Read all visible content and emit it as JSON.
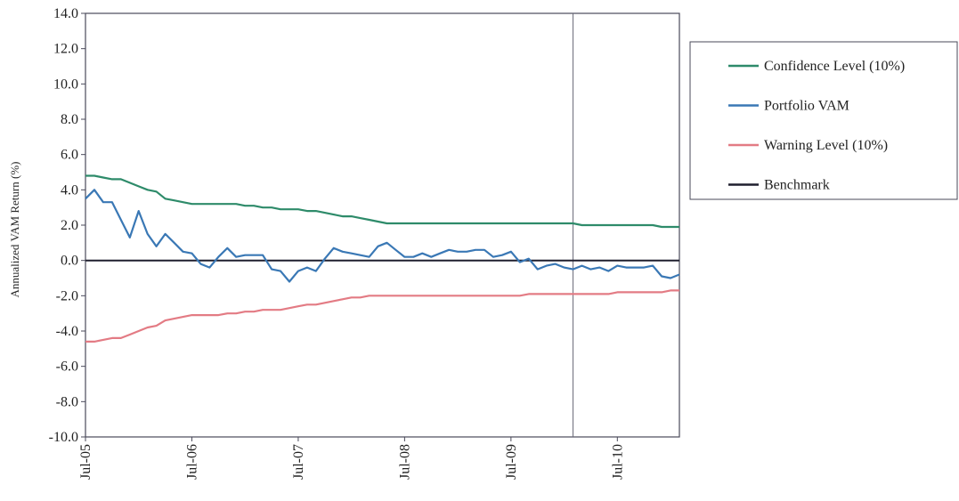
{
  "chart_data": {
    "type": "line",
    "title": "",
    "xlabel": "",
    "ylabel": "Annualized VAM Return (%)",
    "ylim": [
      -10,
      14
    ],
    "y_ticks": [
      "14.0",
      "12.0",
      "10.0",
      "8.0",
      "6.0",
      "4.0",
      "2.0",
      "0.0",
      "-2.0",
      "-4.0",
      "-6.0",
      "-8.0",
      "-10.0"
    ],
    "y_tick_values": [
      14,
      12,
      10,
      8,
      6,
      4,
      2,
      0,
      -2,
      -4,
      -6,
      -8,
      -10
    ],
    "x_ticks": [
      "Jul-05",
      "Jul-06",
      "Jul-07",
      "Jul-08",
      "Jul-09",
      "Jul-10"
    ],
    "x_tick_months": [
      0,
      12,
      24,
      36,
      48,
      60
    ],
    "x_range_months": [
      0,
      67
    ],
    "marker_line_month": 55,
    "grid": false,
    "legend_position": "right",
    "series": [
      {
        "name": "Confidence Level (10%)",
        "color": "#2e8b6a",
        "values": [
          4.8,
          4.8,
          4.7,
          4.6,
          4.6,
          4.4,
          4.2,
          4.0,
          3.9,
          3.5,
          3.4,
          3.3,
          3.2,
          3.2,
          3.2,
          3.2,
          3.2,
          3.2,
          3.1,
          3.1,
          3.0,
          3.0,
          2.9,
          2.9,
          2.9,
          2.8,
          2.8,
          2.7,
          2.6,
          2.5,
          2.5,
          2.4,
          2.3,
          2.2,
          2.1,
          2.1,
          2.1,
          2.1,
          2.1,
          2.1,
          2.1,
          2.1,
          2.1,
          2.1,
          2.1,
          2.1,
          2.1,
          2.1,
          2.1,
          2.1,
          2.1,
          2.1,
          2.1,
          2.1,
          2.1,
          2.1,
          2.0,
          2.0,
          2.0,
          2.0,
          2.0,
          2.0,
          2.0,
          2.0,
          2.0,
          1.9,
          1.9,
          1.9
        ]
      },
      {
        "name": "Portfolio VAM",
        "color": "#3a78b5",
        "values": [
          3.5,
          4.0,
          3.3,
          3.3,
          2.3,
          1.3,
          2.8,
          1.5,
          0.8,
          1.5,
          1.0,
          0.5,
          0.4,
          -0.2,
          -0.4,
          0.2,
          0.7,
          0.2,
          0.3,
          0.3,
          0.3,
          -0.5,
          -0.6,
          -1.2,
          -0.6,
          -0.4,
          -0.6,
          0.1,
          0.7,
          0.5,
          0.4,
          0.3,
          0.2,
          0.8,
          1.0,
          0.6,
          0.2,
          0.2,
          0.4,
          0.2,
          0.4,
          0.6,
          0.5,
          0.5,
          0.6,
          0.6,
          0.2,
          0.3,
          0.5,
          -0.1,
          0.1,
          -0.5,
          -0.3,
          -0.2,
          -0.4,
          -0.5,
          -0.3,
          -0.5,
          -0.4,
          -0.6,
          -0.3,
          -0.4,
          -0.4,
          -0.4,
          -0.3,
          -0.9,
          -1.0,
          -0.8
        ]
      },
      {
        "name": "Warning Level (10%)",
        "color": "#e37b84",
        "values": [
          -4.6,
          -4.6,
          -4.5,
          -4.4,
          -4.4,
          -4.2,
          -4.0,
          -3.8,
          -3.7,
          -3.4,
          -3.3,
          -3.2,
          -3.1,
          -3.1,
          -3.1,
          -3.1,
          -3.0,
          -3.0,
          -2.9,
          -2.9,
          -2.8,
          -2.8,
          -2.8,
          -2.7,
          -2.6,
          -2.5,
          -2.5,
          -2.4,
          -2.3,
          -2.2,
          -2.1,
          -2.1,
          -2.0,
          -2.0,
          -2.0,
          -2.0,
          -2.0,
          -2.0,
          -2.0,
          -2.0,
          -2.0,
          -2.0,
          -2.0,
          -2.0,
          -2.0,
          -2.0,
          -2.0,
          -2.0,
          -2.0,
          -2.0,
          -1.9,
          -1.9,
          -1.9,
          -1.9,
          -1.9,
          -1.9,
          -1.9,
          -1.9,
          -1.9,
          -1.9,
          -1.8,
          -1.8,
          -1.8,
          -1.8,
          -1.8,
          -1.8,
          -1.7,
          -1.7
        ]
      },
      {
        "name": "Benchmark",
        "color": "#1f1f2e",
        "values": [
          0.0,
          0.0,
          0.0,
          0.0,
          0.0,
          0.0,
          0.0,
          0.0,
          0.0,
          0.0,
          0.0,
          0.0,
          0.0,
          0.0,
          0.0,
          0.0,
          0.0,
          0.0,
          0.0,
          0.0,
          0.0,
          0.0,
          0.0,
          0.0,
          0.0,
          0.0,
          0.0,
          0.0,
          0.0,
          0.0,
          0.0,
          0.0,
          0.0,
          0.0,
          0.0,
          0.0,
          0.0,
          0.0,
          0.0,
          0.0,
          0.0,
          0.0,
          0.0,
          0.0,
          0.0,
          0.0,
          0.0,
          0.0,
          0.0,
          0.0,
          0.0,
          0.0,
          0.0,
          0.0,
          0.0,
          0.0,
          0.0,
          0.0,
          0.0,
          0.0,
          0.0,
          0.0,
          0.0,
          0.0,
          0.0,
          0.0,
          0.0,
          0.0
        ]
      }
    ]
  }
}
